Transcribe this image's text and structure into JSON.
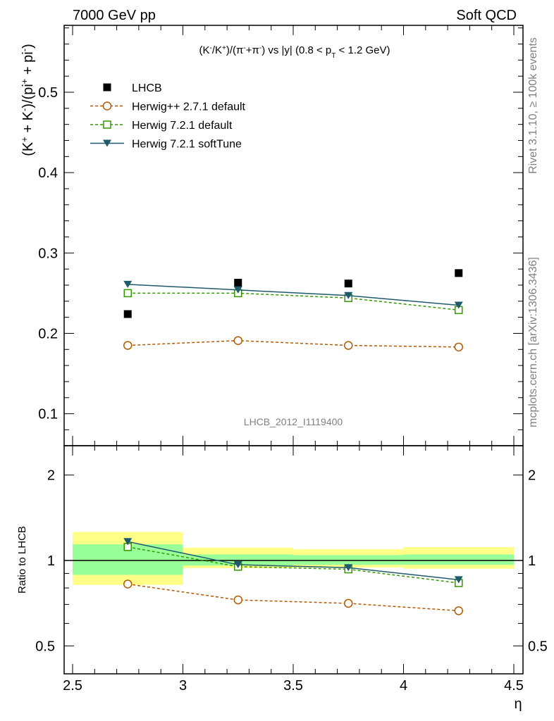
{
  "header": {
    "left": "7000 GeV pp",
    "right": "Soft QCD"
  },
  "side_labels": {
    "rivet": "Rivet 3.1.10, ≥ 100k events",
    "mcplots": "mcplots.cern.ch [arXiv:1306.3436]"
  },
  "watermark": "LHCB_2012_I1119400",
  "chart_data": [
    {
      "type": "scatter",
      "title": "(K⁻/K⁺)/(π⁻+π⁻) vs |y| (0.8 < p_T < 1.2 GeV)",
      "ylabel": "(K⁺ + K⁻)/(pi⁺ + pi⁻)",
      "xlabel": "η",
      "xlim": [
        2.5,
        4.5
      ],
      "ylim": [
        0.05,
        0.585
      ],
      "yticks": [
        0.1,
        0.2,
        0.3,
        0.4,
        0.5
      ],
      "ytick_labels": [
        "0.1",
        "0.2",
        "0.3",
        "0.4",
        "0.5"
      ],
      "legend_position": "top-left",
      "x": [
        2.75,
        3.25,
        3.75,
        4.25
      ],
      "series": [
        {
          "name": "LHCB",
          "style": "data",
          "color": "#000000",
          "marker": "square-filled",
          "values": [
            0.224,
            0.263,
            0.262,
            0.275
          ]
        },
        {
          "name": "Herwig++ 2.7.1 default",
          "color": "#b35900",
          "marker": "circle-open",
          "dash": true,
          "values": [
            0.185,
            0.191,
            0.185,
            0.183
          ],
          "errors": [
            0.003,
            0.004,
            0.004,
            0.005
          ]
        },
        {
          "name": "Herwig 7.2.1 default",
          "color": "#339900",
          "marker": "square-open",
          "dash": true,
          "values": [
            0.25,
            0.25,
            0.244,
            0.229
          ]
        },
        {
          "name": "Herwig 7.2.1 softTune",
          "color": "#1f5a6b",
          "marker": "triangle-down",
          "dash": false,
          "values": [
            0.261,
            0.254,
            0.247,
            0.235
          ]
        }
      ]
    },
    {
      "type": "line",
      "ylabel": "Ratio to LHCB",
      "xlabel": "η",
      "xlim": [
        2.5,
        4.5
      ],
      "ylim": [
        0.4,
        2.4
      ],
      "log_y": true,
      "yticks": [
        0.5,
        1,
        2
      ],
      "ytick_labels": [
        "0.5",
        "1",
        "2"
      ],
      "xticks": [
        2.5,
        3,
        3.5,
        4,
        4.5
      ],
      "xtick_labels": [
        "2.5",
        "3",
        "3.5",
        "4",
        "4.5"
      ],
      "x": [
        2.75,
        3.25,
        3.75,
        4.25
      ],
      "bins": [
        [
          2.5,
          3.0
        ],
        [
          3.0,
          3.5
        ],
        [
          3.5,
          4.0
        ],
        [
          4.0,
          4.5
        ]
      ],
      "bands": {
        "stat": [
          [
            0.89,
            1.14
          ],
          [
            0.96,
            1.05
          ],
          [
            0.965,
            1.045
          ],
          [
            0.965,
            1.05
          ]
        ],
        "total": [
          [
            0.82,
            1.26
          ],
          [
            0.94,
            1.11
          ],
          [
            0.945,
            1.095
          ],
          [
            0.935,
            1.115
          ]
        ],
        "stat_color": "#99ff99",
        "total_color": "#ffff88"
      },
      "series": [
        {
          "name": "Herwig++ 2.7.1 default",
          "color": "#b35900",
          "marker": "circle-open",
          "dash": true,
          "values": [
            0.826,
            0.726,
            0.706,
            0.665
          ]
        },
        {
          "name": "Herwig 7.2.1 default",
          "color": "#339900",
          "marker": "square-open",
          "dash": true,
          "values": [
            1.116,
            0.951,
            0.931,
            0.833
          ]
        },
        {
          "name": "Herwig 7.2.1 softTune",
          "color": "#1f5a6b",
          "marker": "triangle-down",
          "dash": false,
          "values": [
            1.165,
            0.966,
            0.943,
            0.855
          ]
        }
      ]
    }
  ]
}
